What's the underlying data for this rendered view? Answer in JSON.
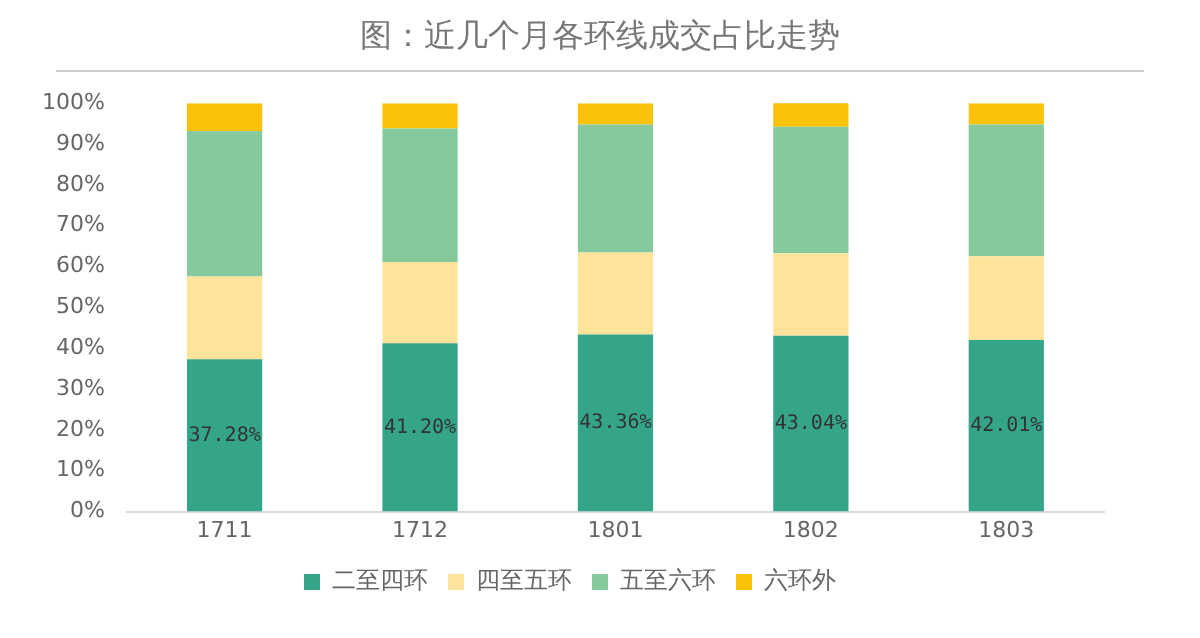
{
  "chart_data": {
    "type": "bar",
    "title": "图：近几个月各环线成交占比走势",
    "categories": [
      "1711",
      "1712",
      "1801",
      "1802",
      "1803"
    ],
    "stacked": true,
    "legend": "bottom",
    "grid": false,
    "ylim": [
      0,
      100
    ],
    "yticks": [
      {
        "value": 0,
        "label": "0%"
      },
      {
        "value": 10,
        "label": "10%"
      },
      {
        "value": 20,
        "label": "20%"
      },
      {
        "value": 30,
        "label": "30%"
      },
      {
        "value": 40,
        "label": "40%"
      },
      {
        "value": 50,
        "label": "50%"
      },
      {
        "value": 60,
        "label": "60%"
      },
      {
        "value": 70,
        "label": "70%"
      },
      {
        "value": 80,
        "label": "80%"
      },
      {
        "value": 90,
        "label": "90%"
      },
      {
        "value": 100,
        "label": "100%"
      }
    ],
    "series": [
      {
        "name": "二至四环",
        "color": "#35a58a",
        "values": [
          37.28,
          41.2,
          43.36,
          43.04,
          42.01
        ],
        "value_labels": [
          "37.28%",
          "41.20%",
          "43.36%",
          "43.04%",
          "42.01%"
        ]
      },
      {
        "name": "四至五环",
        "color": "#fde49a",
        "values": [
          20.3,
          19.9,
          20.1,
          20.2,
          20.5
        ]
      },
      {
        "name": "五至六环",
        "color": "#86c99c",
        "values": [
          35.6,
          32.7,
          31.3,
          31,
          32.3
        ]
      },
      {
        "name": "六环外",
        "color": "#fbc20a",
        "values": [
          6.8,
          6.2,
          5.2,
          5.8,
          5.2
        ]
      }
    ]
  }
}
